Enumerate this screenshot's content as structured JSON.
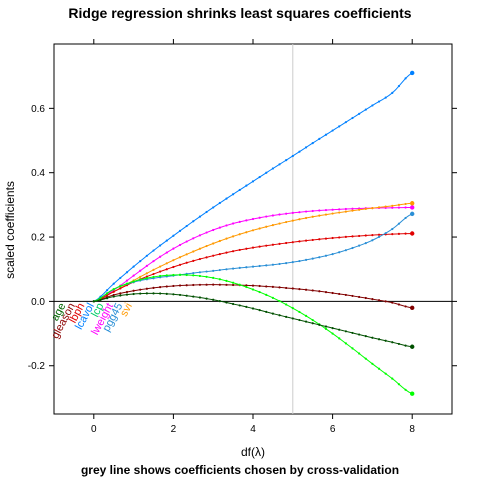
{
  "chart_data": {
    "type": "line",
    "title": "Ridge regression shrinks least squares coefficients",
    "subtitle": "grey line shows coefficients chosen by cross-validation",
    "xlabel": "df(λ)",
    "ylabel": "scaled coefficients",
    "xlim": [
      -1,
      9
    ],
    "ylim": [
      -0.35,
      0.8
    ],
    "xticks": [
      0,
      2,
      4,
      6,
      8
    ],
    "yticks": [
      -0.2,
      0.0,
      0.2,
      0.4,
      0.6
    ],
    "xtick_labels": [
      "0",
      "2",
      "4",
      "6",
      "8"
    ],
    "ytick_labels": [
      "-0.2",
      "0.0",
      "0.2",
      "0.4",
      "0.6"
    ],
    "reference_hline": 0,
    "reference_vline": 5,
    "reference_vline_color": "#cccccc",
    "x": [
      0,
      0.5,
      1,
      1.5,
      2,
      2.5,
      3,
      3.5,
      4,
      4.5,
      5,
      5.5,
      6,
      6.5,
      7,
      7.5,
      8
    ],
    "series": [
      {
        "name": "lcavol",
        "color": "#0080ff",
        "label_color": "#0080ff",
        "values": [
          0,
          0.055,
          0.108,
          0.158,
          0.204,
          0.249,
          0.292,
          0.333,
          0.373,
          0.413,
          0.452,
          0.492,
          0.531,
          0.57,
          0.609,
          0.648,
          0.71
        ]
      },
      {
        "name": "lweight",
        "color": "#ff00ff",
        "label_color": "#ff00ff",
        "values": [
          0,
          0.035,
          0.08,
          0.125,
          0.164,
          0.196,
          0.222,
          0.242,
          0.256,
          0.267,
          0.275,
          0.281,
          0.285,
          0.288,
          0.29,
          0.291,
          0.292
        ]
      },
      {
        "name": "svi",
        "color": "#ff9900",
        "label_color": "#ff9900",
        "values": [
          0,
          0.03,
          0.065,
          0.098,
          0.128,
          0.155,
          0.18,
          0.202,
          0.221,
          0.237,
          0.251,
          0.263,
          0.273,
          0.282,
          0.29,
          0.297,
          0.305
        ]
      },
      {
        "name": "lbph",
        "color": "#e00000",
        "label_color": "#e00000",
        "values": [
          0,
          0.03,
          0.06,
          0.085,
          0.107,
          0.126,
          0.142,
          0.156,
          0.167,
          0.176,
          0.184,
          0.191,
          0.197,
          0.202,
          0.206,
          0.209,
          0.211
        ]
      },
      {
        "name": "pgg45",
        "color": "#2a8fd6",
        "label_color": "#2a8fd6",
        "values": [
          0,
          0.038,
          0.06,
          0.072,
          0.08,
          0.088,
          0.095,
          0.102,
          0.108,
          0.114,
          0.122,
          0.133,
          0.147,
          0.166,
          0.19,
          0.225,
          0.272
        ]
      },
      {
        "name": "gleason",
        "color": "#800000",
        "label_color": "#8b0000",
        "values": [
          0,
          0.02,
          0.033,
          0.042,
          0.048,
          0.051,
          0.052,
          0.051,
          0.049,
          0.045,
          0.04,
          0.034,
          0.026,
          0.017,
          0.007,
          -0.004,
          -0.02
        ]
      },
      {
        "name": "lcp",
        "color": "#00ff00",
        "label_color": "#00cc66",
        "values": [
          0,
          0.038,
          0.062,
          0.076,
          0.082,
          0.081,
          0.073,
          0.058,
          0.037,
          0.011,
          -0.021,
          -0.058,
          -0.1,
          -0.146,
          -0.194,
          -0.24,
          -0.287
        ]
      },
      {
        "name": "age",
        "color": "#005000",
        "label_color": "#006400",
        "values": [
          0,
          0.015,
          0.023,
          0.025,
          0.022,
          0.015,
          0.005,
          -0.008,
          -0.022,
          -0.038,
          -0.053,
          -0.068,
          -0.083,
          -0.098,
          -0.113,
          -0.127,
          -0.141
        ]
      }
    ],
    "label_order": [
      "age",
      "gleason",
      "lbph",
      "lcavol",
      "lcp",
      "lweight",
      "pgg45",
      "svi"
    ],
    "grid": false,
    "legend": "none"
  }
}
